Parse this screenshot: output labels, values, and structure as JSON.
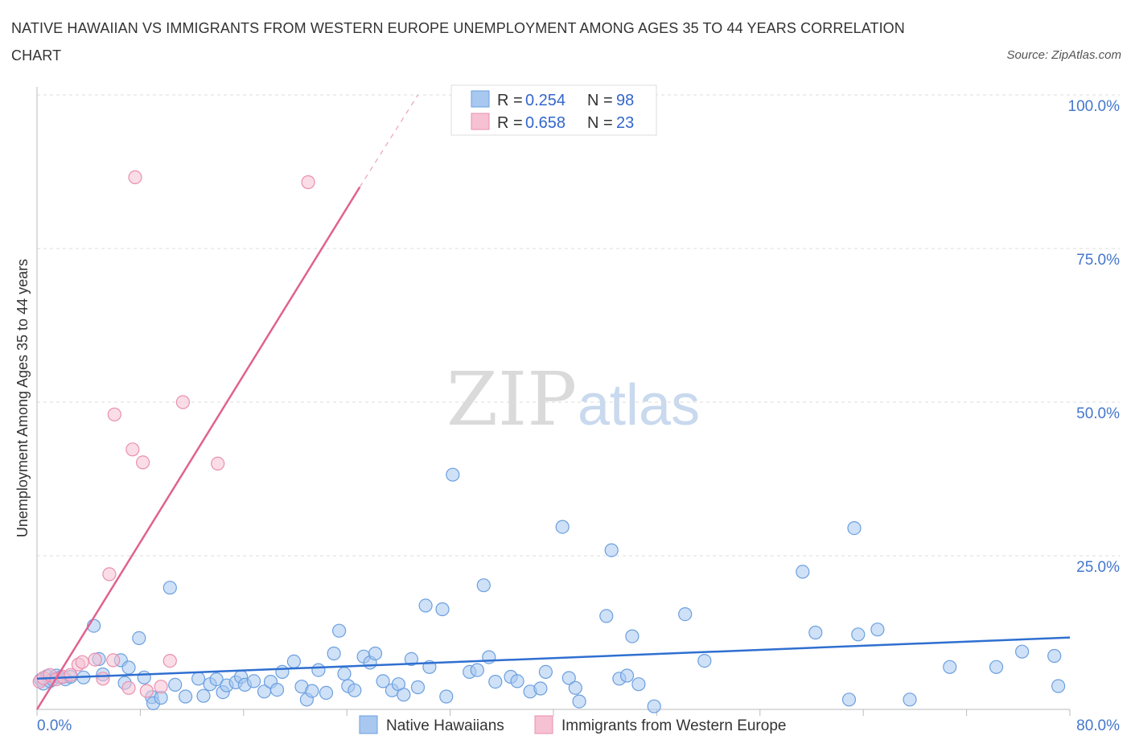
{
  "title": "NATIVE HAWAIIAN VS IMMIGRANTS FROM WESTERN EUROPE UNEMPLOYMENT AMONG AGES 35 TO 44 YEARS CORRELATION CHART",
  "source": "Source: ZipAtlas.com",
  "watermark": {
    "zip": "ZIP",
    "atlas": "atlas"
  },
  "colors": {
    "blue_fill": "#a8c8f0",
    "blue_stroke": "#6b9fe0",
    "blue_line": "#2f6fd0",
    "pink_fill": "#f6c1d3",
    "pink_stroke": "#e98fae",
    "pink_line": "#e0628f",
    "grid": "#dddddd",
    "tick_text": "#4477cc"
  },
  "legend": {
    "rows": [
      {
        "r_label": "R = ",
        "r_value": "0.254",
        "n_label": "N = ",
        "n_value": "98",
        "series": "blue"
      },
      {
        "r_label": "R = ",
        "r_value": "0.658",
        "n_label": "N = ",
        "n_value": "23",
        "series": "pink"
      }
    ]
  },
  "chart_data": {
    "type": "scatter",
    "title": "NATIVE HAWAIIAN VS IMMIGRANTS FROM WESTERN EUROPE UNEMPLOYMENT AMONG AGES 35 TO 44 YEARS CORRELATION CHART",
    "xlabel": "",
    "ylabel": "Unemployment Among Ages 35 to 44 years",
    "xlim": [
      0,
      80
    ],
    "ylim": [
      0,
      100
    ],
    "x_tick_labels": [
      {
        "value": 0,
        "label": "0.0%"
      },
      {
        "value": 80,
        "label": "80.0%"
      }
    ],
    "y_tick_labels": [
      {
        "value": 25,
        "label": "25.0%"
      },
      {
        "value": 50,
        "label": "50.0%"
      },
      {
        "value": 75,
        "label": "75.0%"
      },
      {
        "value": 100,
        "label": "100.0%"
      }
    ],
    "legend_position": "top-center",
    "series": [
      {
        "name": "Native Hawaiians",
        "color": "#a8c8f0",
        "trend": {
          "x": [
            0,
            80
          ],
          "y": [
            5.0,
            11.7
          ]
        },
        "points": [
          [
            0.3,
            4.8
          ],
          [
            0.5,
            4.2
          ],
          [
            0.8,
            5.4
          ],
          [
            1.0,
            4.6
          ],
          [
            1.2,
            4.9
          ],
          [
            1.5,
            5.5
          ],
          [
            1.8,
            5.2
          ],
          [
            2.2,
            4.9
          ],
          [
            2.6,
            5.3
          ],
          [
            3.6,
            5.2
          ],
          [
            4.4,
            13.6
          ],
          [
            4.8,
            8.2
          ],
          [
            5.1,
            5.7
          ],
          [
            6.5,
            8.0
          ],
          [
            6.8,
            4.3
          ],
          [
            7.1,
            6.8
          ],
          [
            7.9,
            11.6
          ],
          [
            8.3,
            5.2
          ],
          [
            8.9,
            2.0
          ],
          [
            9.0,
            1.0
          ],
          [
            9.6,
            1.9
          ],
          [
            10.3,
            19.8
          ],
          [
            10.7,
            4.0
          ],
          [
            11.5,
            2.1
          ],
          [
            12.5,
            5.0
          ],
          [
            12.9,
            2.2
          ],
          [
            13.4,
            4.1
          ],
          [
            13.9,
            4.9
          ],
          [
            14.4,
            2.8
          ],
          [
            14.7,
            3.9
          ],
          [
            15.4,
            4.4
          ],
          [
            15.8,
            5.3
          ],
          [
            16.1,
            4.0
          ],
          [
            16.8,
            4.6
          ],
          [
            17.6,
            2.9
          ],
          [
            18.1,
            4.5
          ],
          [
            18.6,
            3.2
          ],
          [
            19.0,
            6.1
          ],
          [
            19.9,
            7.8
          ],
          [
            20.5,
            3.7
          ],
          [
            20.9,
            1.6
          ],
          [
            21.3,
            3.0
          ],
          [
            21.8,
            6.4
          ],
          [
            22.4,
            2.7
          ],
          [
            23.0,
            9.1
          ],
          [
            23.4,
            12.8
          ],
          [
            23.8,
            5.8
          ],
          [
            24.1,
            3.8
          ],
          [
            24.6,
            3.1
          ],
          [
            25.3,
            8.6
          ],
          [
            25.8,
            7.6
          ],
          [
            26.2,
            9.1
          ],
          [
            26.8,
            4.6
          ],
          [
            27.5,
            3.1
          ],
          [
            28.0,
            4.1
          ],
          [
            28.4,
            2.4
          ],
          [
            29.0,
            8.2
          ],
          [
            29.5,
            3.6
          ],
          [
            30.1,
            16.9
          ],
          [
            30.4,
            6.9
          ],
          [
            31.4,
            16.3
          ],
          [
            31.7,
            2.1
          ],
          [
            32.2,
            38.2
          ],
          [
            33.5,
            6.1
          ],
          [
            34.1,
            6.4
          ],
          [
            34.6,
            20.2
          ],
          [
            35.0,
            8.5
          ],
          [
            35.5,
            4.5
          ],
          [
            36.7,
            5.3
          ],
          [
            37.2,
            4.6
          ],
          [
            38.2,
            2.9
          ],
          [
            39.0,
            3.4
          ],
          [
            39.4,
            6.1
          ],
          [
            40.7,
            29.7
          ],
          [
            41.2,
            5.1
          ],
          [
            41.7,
            3.5
          ],
          [
            42.0,
            1.3
          ],
          [
            44.1,
            15.2
          ],
          [
            44.5,
            25.9
          ],
          [
            45.1,
            5.0
          ],
          [
            45.7,
            5.5
          ],
          [
            46.1,
            11.9
          ],
          [
            46.6,
            4.1
          ],
          [
            47.8,
            0.5
          ],
          [
            50.2,
            15.5
          ],
          [
            51.7,
            7.9
          ],
          [
            59.3,
            22.4
          ],
          [
            60.3,
            12.5
          ],
          [
            62.9,
            1.6
          ],
          [
            63.3,
            29.5
          ],
          [
            63.6,
            12.2
          ],
          [
            65.1,
            13.0
          ],
          [
            67.6,
            1.6
          ],
          [
            70.7,
            6.9
          ],
          [
            74.3,
            6.9
          ],
          [
            76.3,
            9.4
          ],
          [
            78.8,
            8.7
          ],
          [
            79.1,
            3.8
          ]
        ]
      },
      {
        "name": "Immigrants from Western Europe",
        "color": "#f6c1d3",
        "trend": {
          "x": [
            0,
            25
          ],
          "y": [
            0,
            85
          ]
        },
        "trend_extension": {
          "x": [
            25,
            29.5
          ],
          "y": [
            85,
            100
          ]
        },
        "points": [
          [
            0.2,
            4.5
          ],
          [
            0.5,
            5.1
          ],
          [
            1.0,
            5.6
          ],
          [
            1.5,
            4.9
          ],
          [
            2.0,
            5.3
          ],
          [
            2.6,
            5.6
          ],
          [
            3.2,
            7.3
          ],
          [
            3.5,
            7.7
          ],
          [
            4.5,
            8.1
          ],
          [
            5.1,
            5.0
          ],
          [
            5.6,
            22.0
          ],
          [
            5.9,
            8.0
          ],
          [
            7.1,
            3.5
          ],
          [
            7.4,
            42.3
          ],
          [
            7.6,
            86.6
          ],
          [
            8.2,
            40.2
          ],
          [
            8.5,
            3.0
          ],
          [
            9.6,
            3.7
          ],
          [
            10.3,
            7.9
          ],
          [
            11.3,
            50.0
          ],
          [
            14.0,
            40.0
          ],
          [
            21.0,
            85.8
          ],
          [
            6.0,
            48.0
          ]
        ]
      }
    ]
  },
  "bottom_legend": {
    "items": [
      {
        "label": "Native Hawaiians",
        "series": "blue"
      },
      {
        "label": "Immigrants from Western Europe",
        "series": "pink"
      }
    ]
  }
}
